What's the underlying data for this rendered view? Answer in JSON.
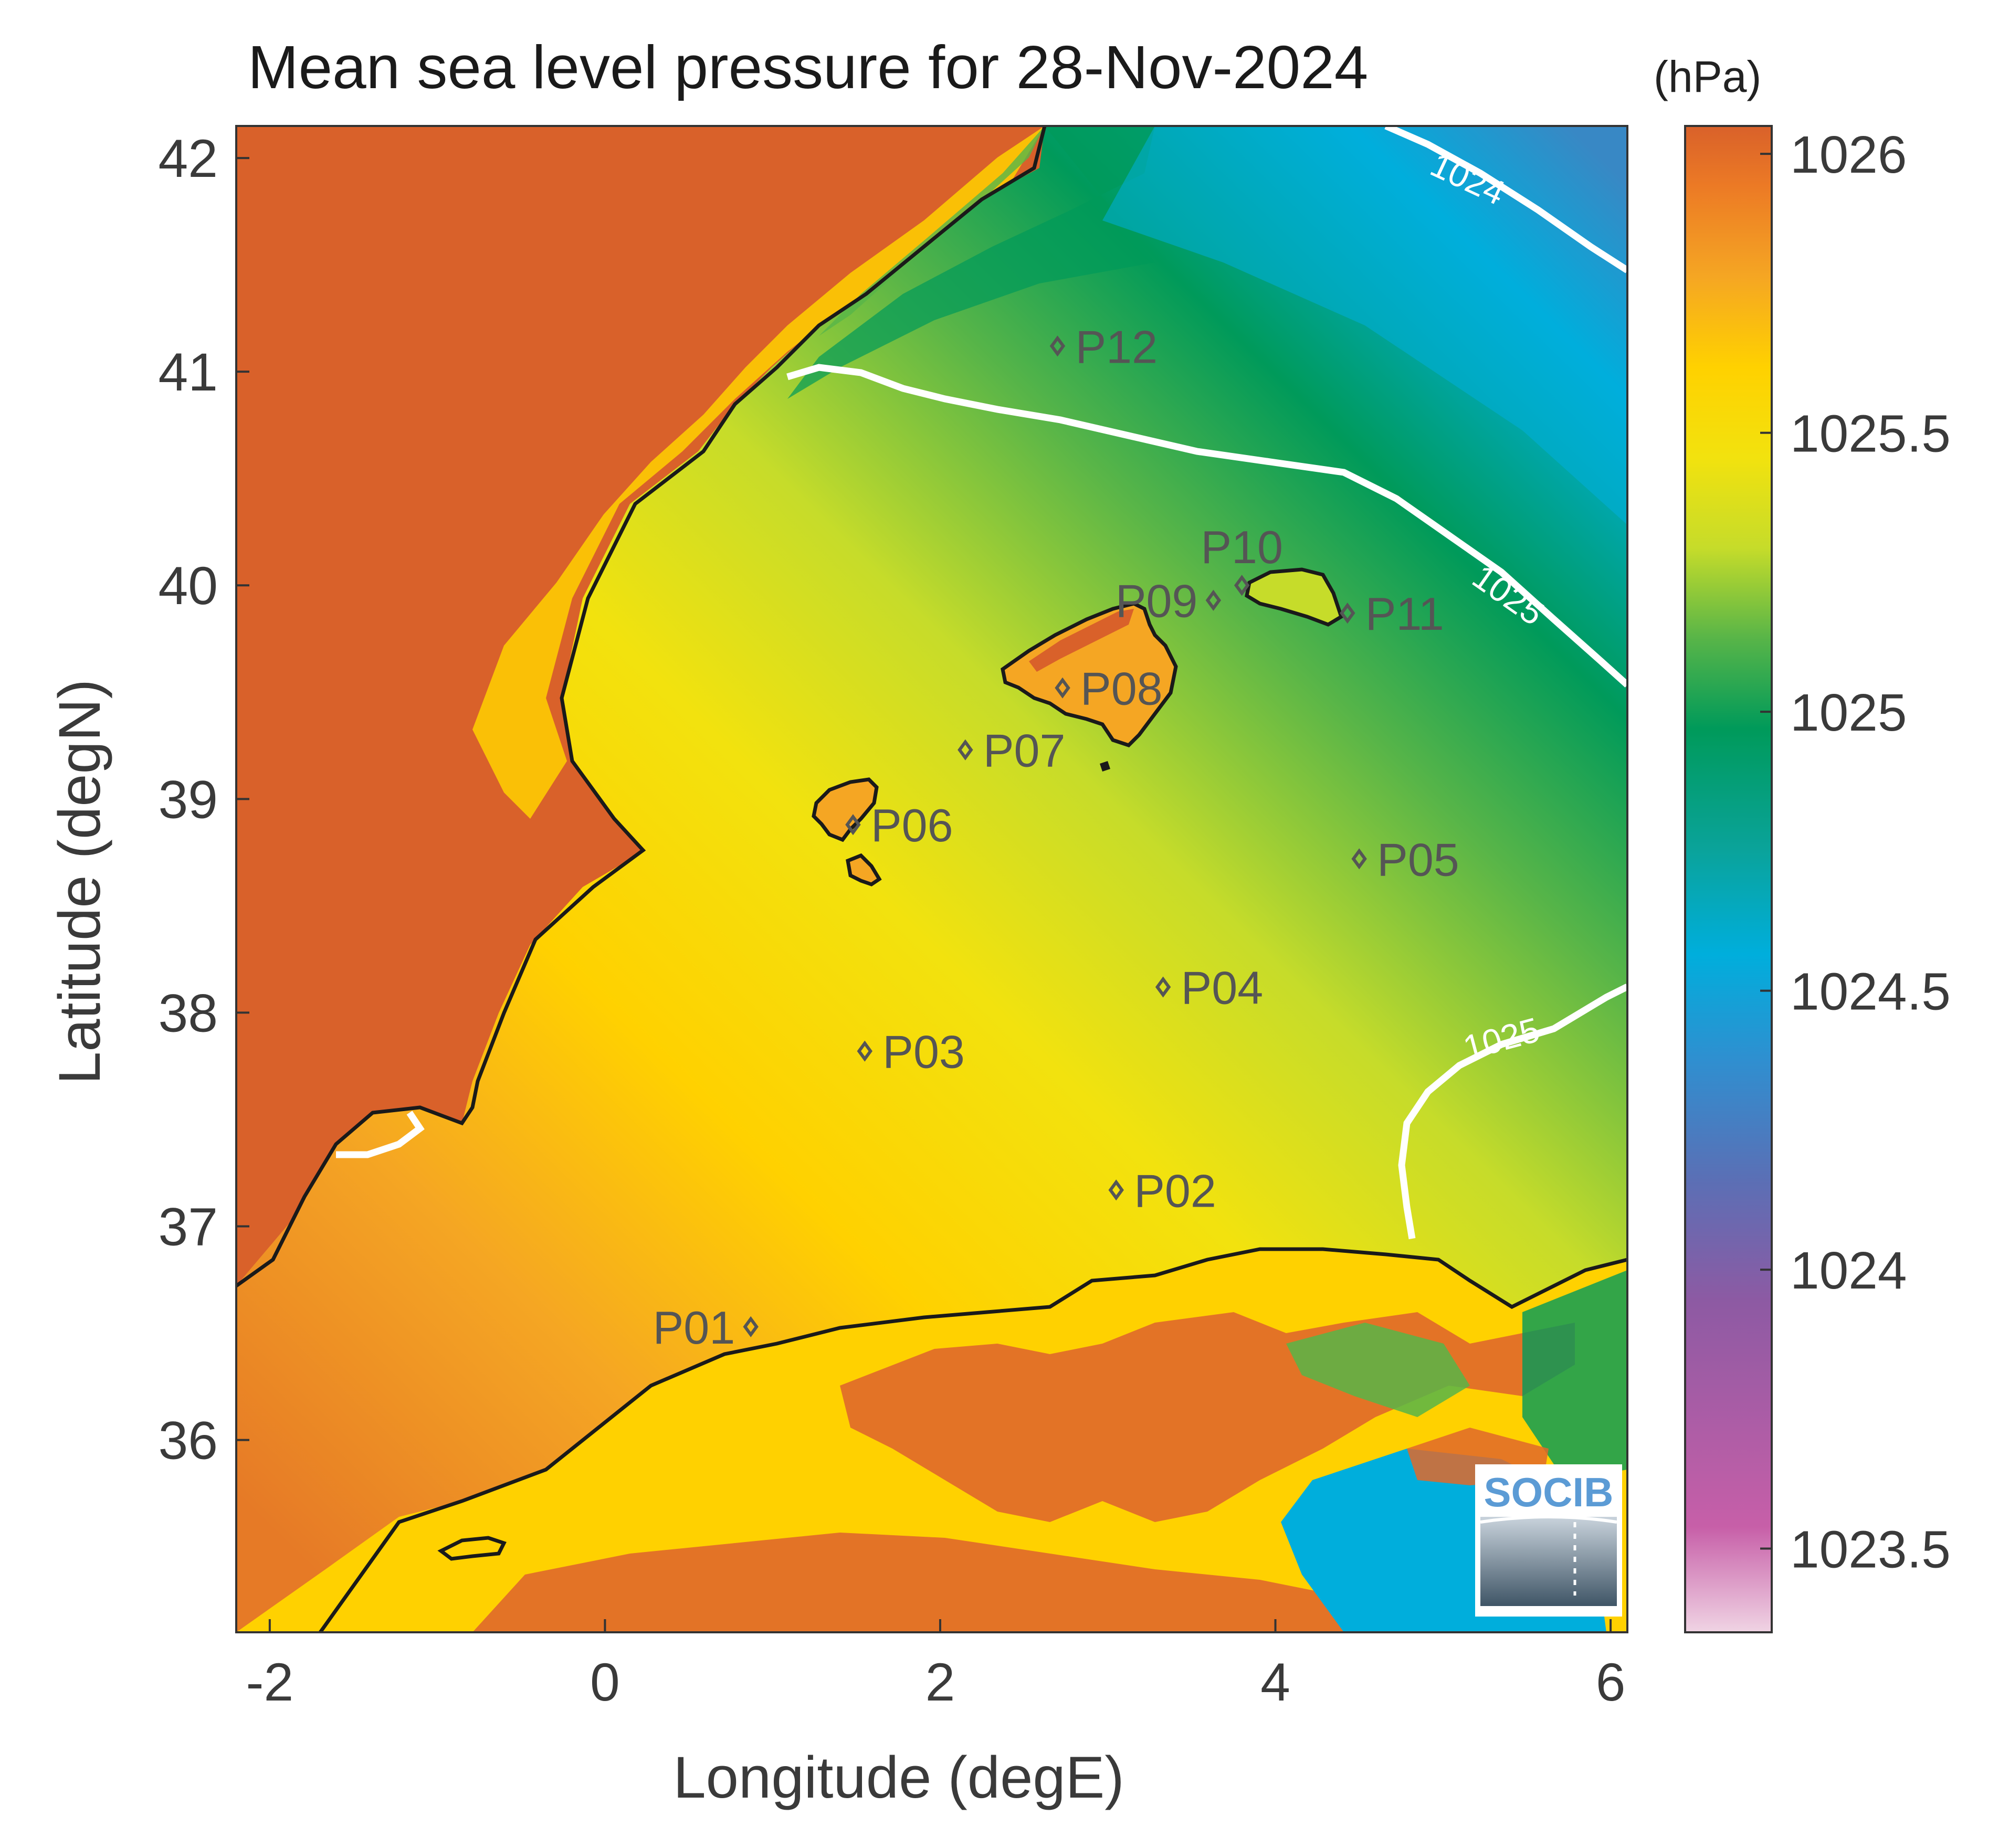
{
  "title": "Mean sea level pressure for 28-Nov-2024",
  "colorbar": {
    "unit": "(hPa)",
    "ticks": [
      "1026",
      "1025.5",
      "1025",
      "1024.5",
      "1024",
      "1023.5"
    ],
    "tick_values": [
      1026,
      1025.5,
      1025,
      1024.5,
      1024,
      1023.5
    ],
    "range": [
      1023.35,
      1026.05
    ],
    "colors": [
      "#e8c4da",
      "#c75fa8",
      "#8d5aa3",
      "#5b6fb5",
      "#2f8fd0",
      "#00aedc",
      "#0aa39a",
      "#009a5a",
      "#58b548",
      "#c6dc2a",
      "#f2e20e",
      "#ffd100",
      "#f5a623",
      "#ec7a25",
      "#d9612a"
    ]
  },
  "axes": {
    "xlabel": "Longitude (degE)",
    "ylabel": "Latitude (degN)",
    "xlim": [
      -2.2,
      6.1
    ],
    "ylim": [
      35.1,
      42.15
    ],
    "xticks": [
      "-2",
      "0",
      "2",
      "4",
      "6"
    ],
    "xtick_values": [
      -2,
      0,
      2,
      4,
      6
    ],
    "yticks": [
      "42",
      "41",
      "40",
      "39",
      "38",
      "37",
      "36"
    ],
    "ytick_values": [
      42,
      41,
      40,
      39,
      38,
      37,
      36
    ]
  },
  "stations": [
    {
      "id": "P01",
      "lon": 0.87,
      "lat": 36.53
    },
    {
      "id": "P02",
      "lon": 3.05,
      "lat": 37.17
    },
    {
      "id": "P03",
      "lon": 1.55,
      "lat": 37.82
    },
    {
      "id": "P04",
      "lon": 3.33,
      "lat": 38.12
    },
    {
      "id": "P05",
      "lon": 4.5,
      "lat": 38.72
    },
    {
      "id": "P06",
      "lon": 1.48,
      "lat": 38.88
    },
    {
      "id": "P07",
      "lon": 2.15,
      "lat": 39.23
    },
    {
      "id": "P08",
      "lon": 2.73,
      "lat": 39.52
    },
    {
      "id": "P09",
      "lon": 3.63,
      "lat": 39.93
    },
    {
      "id": "P10",
      "lon": 3.8,
      "lat": 40.0
    },
    {
      "id": "P11",
      "lon": 4.43,
      "lat": 39.87
    },
    {
      "id": "P12",
      "lon": 2.7,
      "lat": 41.12
    }
  ],
  "contour_labels": [
    "1024",
    "1025",
    "1025"
  ],
  "logo_text": "SOCIB"
}
